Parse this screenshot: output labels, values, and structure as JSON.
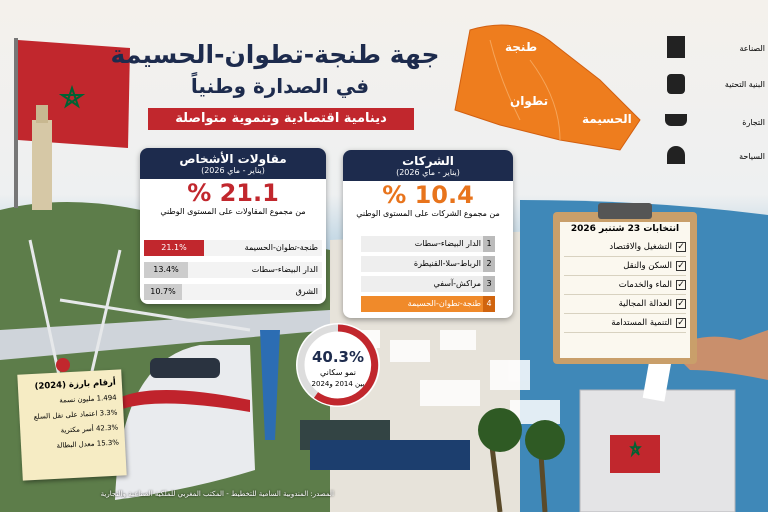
{
  "header": {
    "title": "جهة طنجة-تطوان-الحسيمة",
    "subtitle": "في الصدارة وطنياً",
    "banner": "دينامية اقتصادية وتنموية متواصلة"
  },
  "map": {
    "labels": [
      "طنجة",
      "تطوان",
      "الحسيمة"
    ]
  },
  "sectors": [
    "الصناعة",
    "البنية التحتية",
    "التجارة",
    "السياحة"
  ],
  "persons_card": {
    "title": "مقاولات الأشخاص",
    "period": "(يناير - ماي 2026)",
    "headline": "21.1 %",
    "caption": "من مجموع المقاولات على المستوى الوطني",
    "rows": [
      {
        "label": "طنجة-تطوان-الحسيمة",
        "value": "21.1%"
      },
      {
        "label": "الدار البيضاء-سطات",
        "value": "13.4%"
      },
      {
        "label": "الشرق",
        "value": "10.7%"
      }
    ]
  },
  "companies_card": {
    "title": "الشركات",
    "period": "(يناير - ماي 2026)",
    "headline": "10.4 %",
    "caption": "من مجموع الشركات على المستوى الوطني",
    "rows": [
      {
        "rank": 1,
        "label": "الدار البيضاء-سطات"
      },
      {
        "rank": 2,
        "label": "الرباط-سلا-القنيطرة"
      },
      {
        "rank": 3,
        "label": "مراكش-آسفي"
      },
      {
        "rank": 4,
        "label": "طنجة-تطوان-الحسيمة"
      }
    ]
  },
  "growth": {
    "value": "40.3%",
    "label": "نمو سكاني",
    "period": "بين 2014 و2024"
  },
  "elections": {
    "title": "انتخابات 23 شتنبر 2026",
    "items": [
      "التشغيل والاقتصاد",
      "السكن والنقل",
      "الماء والخدمات",
      "العدالة المجالية",
      "التنمية المستدامة"
    ]
  },
  "highlights": {
    "title": "أرقام بارزة (2024)",
    "items": [
      "1.494 مليون نسمة",
      "3.3% اعتماد على نقل السلع",
      "42.3% أسر مكترية",
      "15.3% معدل البطالة"
    ]
  },
  "source": "المصدر: المندوبية السامية للتخطيط - المكتب المغربي للملكية الصناعية والتجارية"
}
